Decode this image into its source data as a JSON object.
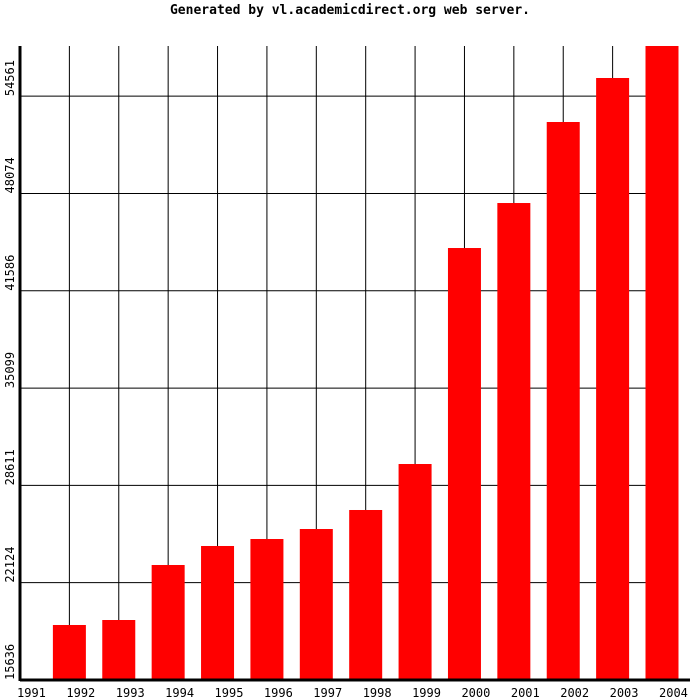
{
  "chart_data": {
    "type": "bar",
    "title": "Generated by vl.academicdirect.org web server.",
    "categories": [
      "1991",
      "1992",
      "1993",
      "1994",
      "1995",
      "1996",
      "1997",
      "1998",
      "1999",
      "2000",
      "2001",
      "2002",
      "2003",
      "2004"
    ],
    "values": [
      15636,
      19303,
      19636,
      23303,
      24570,
      25036,
      25703,
      26970,
      30036,
      44436,
      47436,
      52837,
      55771,
      57904
    ],
    "color": "#ff0000",
    "ylim": [
      15636,
      57904
    ],
    "yticks": [
      15636,
      22124,
      28611,
      35099,
      41586,
      48074,
      54561
    ],
    "grid": true
  }
}
